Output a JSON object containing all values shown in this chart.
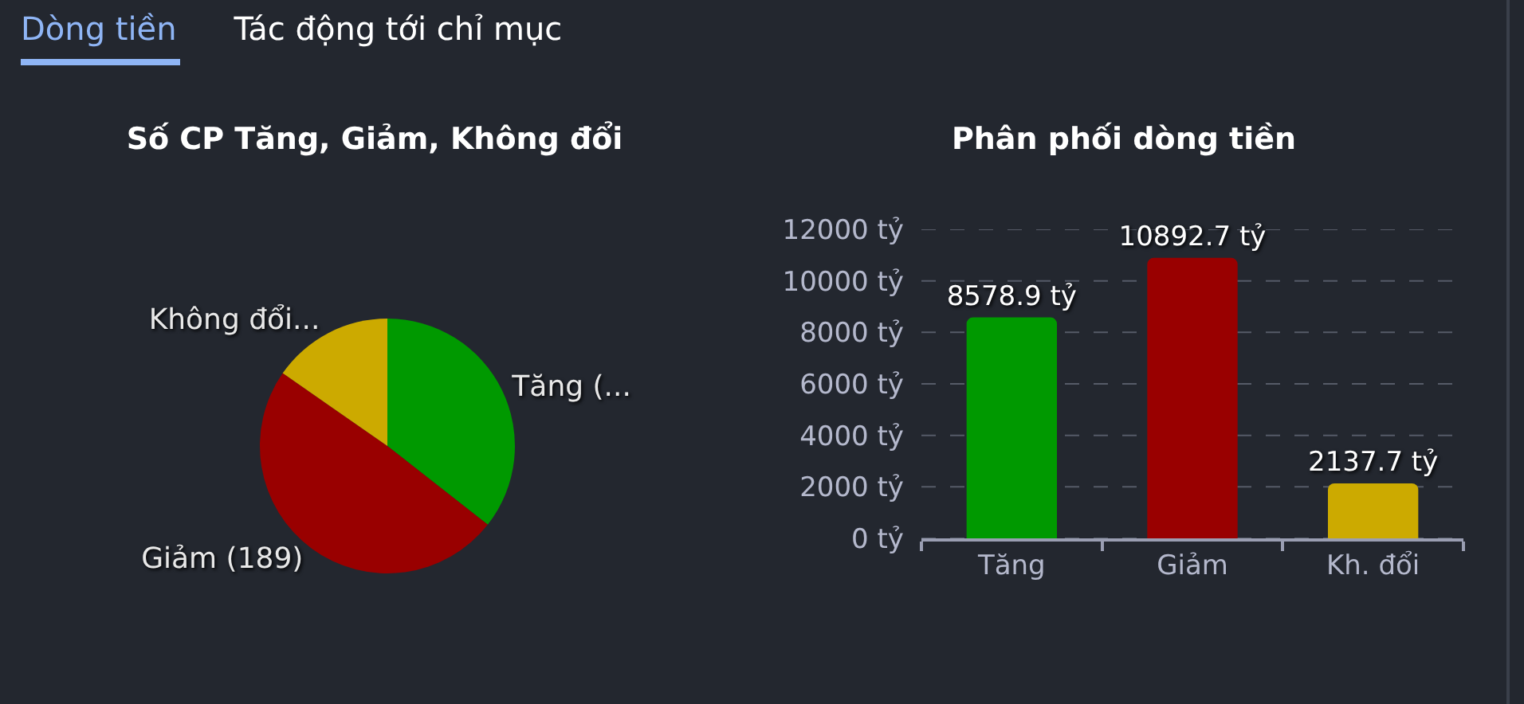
{
  "chart_data": [
    {
      "type": "other",
      "annotations": [
        "Dòng tiền",
        "Tác động tới chỉ mục"
      ]
    },
    {
      "type": "pie",
      "title": "Số CP Tăng, Giảm, Không đổi",
      "categories": [
        "Tăng (...",
        "Giảm (189)",
        "Không đổi..."
      ],
      "values": [
        137,
        189,
        59
      ],
      "colors": [
        "#009900",
        "#990000",
        "#ccaa00"
      ]
    },
    {
      "type": "bar",
      "title": "Phân phối dòng tiền",
      "categories": [
        "Tăng",
        "Giảm",
        "Kh. đổi"
      ],
      "values": [
        8578.9,
        10892.7,
        2137.7
      ],
      "colors": [
        "#009900",
        "#990000",
        "#ccaa00"
      ],
      "value_labels": [
        "8578.9 tỷ",
        "10892.7 tỷ",
        "2137.7 tỷ"
      ],
      "ylim": [
        0,
        12000
      ],
      "yticks": [
        {
          "value": 0,
          "label": "0 tỷ"
        },
        {
          "value": 2000,
          "label": "2000 tỷ"
        },
        {
          "value": 4000,
          "label": "4000 tỷ"
        },
        {
          "value": 6000,
          "label": "6000 tỷ"
        },
        {
          "value": 8000,
          "label": "8000 tỷ"
        },
        {
          "value": 10000,
          "label": "10000 tỷ"
        },
        {
          "value": 12000,
          "label": "12000 tỷ"
        }
      ],
      "grid": "y"
    }
  ]
}
